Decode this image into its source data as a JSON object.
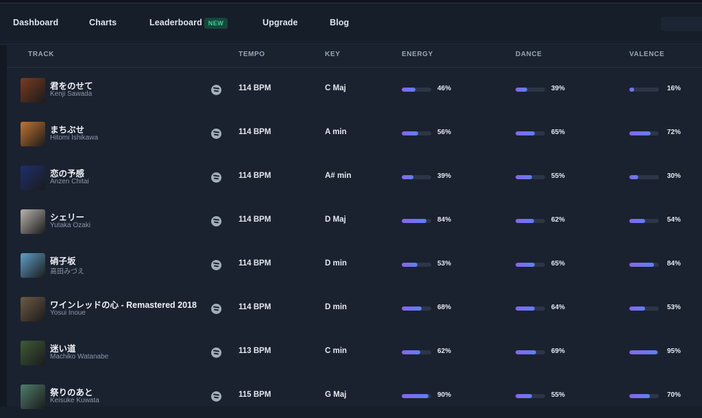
{
  "nav": {
    "items": [
      "Dashboard",
      "Charts",
      "Leaderboard",
      "Upgrade",
      "Blog"
    ],
    "badge": "NEW"
  },
  "table": {
    "headers": {
      "track": "TRACK",
      "tempo": "TEMPO",
      "key": "KEY",
      "energy": "ENERGY",
      "dance": "DANCE",
      "valence": "VALENCE"
    },
    "rows": [
      {
        "title": "君をのせて",
        "artist": "Kenji Sawada",
        "tempo": "114 BPM",
        "key": "C Maj",
        "energy": 46,
        "dance": 39,
        "valence": 16,
        "energy_label": "46%",
        "dance_label": "39%",
        "valence_label": "16%",
        "cover_color": "#7a3b1e"
      },
      {
        "title": "まちぶせ",
        "artist": "Hitomi Ishikawa",
        "tempo": "114 BPM",
        "key": "A min",
        "energy": 56,
        "dance": 65,
        "valence": 72,
        "energy_label": "56%",
        "dance_label": "65%",
        "valence_label": "72%",
        "cover_color": "#c2742d"
      },
      {
        "title": "恋の予感",
        "artist": "Anzen Chitai",
        "tempo": "114 BPM",
        "key": "A# min",
        "energy": 39,
        "dance": 55,
        "valence": 30,
        "energy_label": "39%",
        "dance_label": "55%",
        "valence_label": "30%",
        "cover_color": "#1d2f6e"
      },
      {
        "title": "シェリー",
        "artist": "Yutaka Ozaki",
        "tempo": "114 BPM",
        "key": "D Maj",
        "energy": 84,
        "dance": 62,
        "valence": 54,
        "energy_label": "84%",
        "dance_label": "62%",
        "valence_label": "54%",
        "cover_color": "#b9b3ad"
      },
      {
        "title": "硝子坂",
        "artist": "高田みづえ",
        "tempo": "114 BPM",
        "key": "D min",
        "energy": 53,
        "dance": 65,
        "valence": 84,
        "energy_label": "53%",
        "dance_label": "65%",
        "valence_label": "84%",
        "cover_color": "#5f9fc8"
      },
      {
        "title": "ワインレッドの心 - Remastered 2018",
        "artist": "Yosui Inoue",
        "tempo": "114 BPM",
        "key": "D min",
        "energy": 68,
        "dance": 64,
        "valence": 53,
        "energy_label": "68%",
        "dance_label": "64%",
        "valence_label": "53%",
        "cover_color": "#6d5a44"
      },
      {
        "title": "迷い道",
        "artist": "Machiko Watanabe",
        "tempo": "113 BPM",
        "key": "C min",
        "energy": 62,
        "dance": 69,
        "valence": 95,
        "energy_label": "62%",
        "dance_label": "69%",
        "valence_label": "95%",
        "cover_color": "#3e5b36"
      },
      {
        "title": "祭りのあと",
        "artist": "Keisuke Kuwata",
        "tempo": "115 BPM",
        "key": "G Maj",
        "energy": 90,
        "dance": 55,
        "valence": 70,
        "energy_label": "90%",
        "dance_label": "55%",
        "valence_label": "70%",
        "cover_color": "#4e7d6a"
      }
    ]
  },
  "icons": {
    "stream": "spotify-icon"
  }
}
